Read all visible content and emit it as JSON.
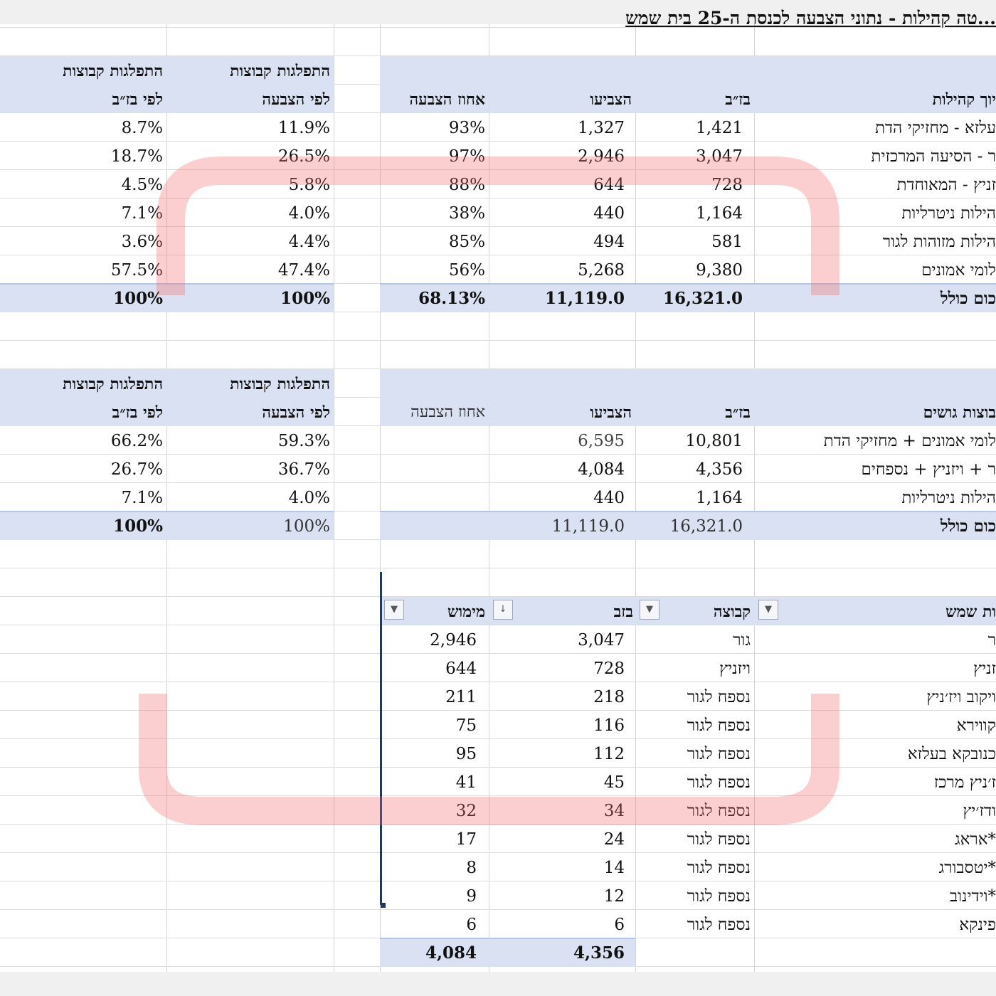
{
  "title": "...טה קהילות - נתוני הצבעה לכנסת ה-25 בית שמש",
  "table1": {
    "headers": {
      "community": "יוך קהילות",
      "eligible": "בז״ב",
      "voted": "הצביעו",
      "turnout": "אחוז הצבעה",
      "dist_vote_1": "התפלגות קבוצות",
      "dist_vote_2": "לפי הצבעה",
      "dist_elig_1": "התפלגות קבוצות",
      "dist_elig_2": "לפי בז״ב"
    },
    "rows": [
      {
        "community": "עלזא - מחזיקי הדת",
        "eligible": "1,421",
        "voted": "1,327",
        "turnout": "93%",
        "dist_vote": "11.9%",
        "dist_elig": "8.7%"
      },
      {
        "community": "ר - הסיעה המרכזית",
        "eligible": "3,047",
        "voted": "2,946",
        "turnout": "97%",
        "dist_vote": "26.5%",
        "dist_elig": "18.7%"
      },
      {
        "community": "זניץ - המאוחדת",
        "eligible": "728",
        "voted": "644",
        "turnout": "88%",
        "dist_vote": "5.8%",
        "dist_elig": "4.5%"
      },
      {
        "community": "הילות ניטרליות",
        "eligible": "1,164",
        "voted": "440",
        "turnout": "38%",
        "dist_vote": "4.0%",
        "dist_elig": "7.1%"
      },
      {
        "community": "הילות מזוהות לגור",
        "eligible": "581",
        "voted": "494",
        "turnout": "85%",
        "dist_vote": "4.4%",
        "dist_elig": "3.6%"
      },
      {
        "community": "לומי אמונים",
        "eligible": "9,380",
        "voted": "5,268",
        "turnout": "56%",
        "dist_vote": "47.4%",
        "dist_elig": "57.5%"
      }
    ],
    "total": {
      "label": "כום כולל",
      "eligible": "16,321.0",
      "voted": "11,119.0",
      "turnout": "68.13%",
      "dist_vote": "100%",
      "dist_elig": "100%"
    }
  },
  "table2": {
    "headers": {
      "group": "בוצות גושים",
      "eligible": "בז״ב",
      "voted": "הצביעו",
      "turnout": "אחוז הצבעה",
      "dist_vote_1": "התפלגות קבוצות",
      "dist_vote_2": "לפי הצבעה",
      "dist_elig_1": "התפלגות קבוצות",
      "dist_elig_2": "לפי בז״ב"
    },
    "rows": [
      {
        "group": "לומי אמונים + מחזיקי הדת",
        "eligible": "10,801",
        "voted": "6,595",
        "dist_vote": "59.3%",
        "dist_elig": "66.2%"
      },
      {
        "group": "ר + ויזניץ + נספחים",
        "eligible": "4,356",
        "voted": "4,084",
        "dist_vote": "36.7%",
        "dist_elig": "26.7%"
      },
      {
        "group": "הילות ניטרליות",
        "eligible": "1,164",
        "voted": "440",
        "dist_vote": "4.0%",
        "dist_elig": "7.1%"
      }
    ],
    "total": {
      "label": "כום כולל",
      "eligible": "16,321.0",
      "voted": "11,119.0",
      "dist_vote": "100%",
      "dist_elig": "100%"
    }
  },
  "table3": {
    "headers": {
      "name": "ות שמש",
      "group": "קבוצה",
      "eligible": "בזב",
      "actual": "מימוש"
    },
    "rows": [
      {
        "name": "ר",
        "group": "גור",
        "eligible": "3,047",
        "actual": "2,946"
      },
      {
        "name": "זניץ",
        "group": "ויזניץ",
        "eligible": "728",
        "actual": "644"
      },
      {
        "name": "ויקוב ויז׳ניץ",
        "group": "נספח לגור",
        "eligible": "218",
        "actual": "211"
      },
      {
        "name": "קווירא",
        "group": "נספח לגור",
        "eligible": "116",
        "actual": "75"
      },
      {
        "name": "כנובקא בעלזא",
        "group": "נספח לגור",
        "eligible": "112",
        "actual": "95"
      },
      {
        "name": "ז׳ניץ מרכז",
        "group": "נספח לגור",
        "eligible": "45",
        "actual": "41"
      },
      {
        "name": "ודז׳יץ",
        "group": "נספח לגור",
        "eligible": "34",
        "actual": "32"
      },
      {
        "name": "*אראג",
        "group": "נספח לגור",
        "eligible": "24",
        "actual": "17"
      },
      {
        "name": "*יטסבורג",
        "group": "נספח לגור",
        "eligible": "14",
        "actual": "8"
      },
      {
        "name": "*וידינוב",
        "group": "נספח לגור",
        "eligible": "12",
        "actual": "9"
      },
      {
        "name": "פינקא",
        "group": "נספח לגור",
        "eligible": "6",
        "actual": "6"
      }
    ],
    "total": {
      "eligible": "4,356",
      "actual": "4,084"
    }
  },
  "icons": {
    "filter": "chevron-down-icon",
    "sort": "sort-descending-icon"
  },
  "colors": {
    "header_band": "#d9e1f2",
    "gridline": "#d4d4d4",
    "watermark": "#f26b6b"
  }
}
